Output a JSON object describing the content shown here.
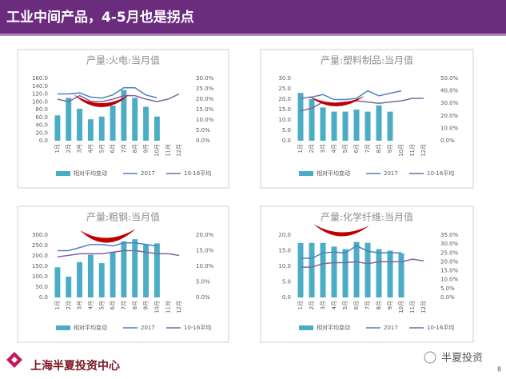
{
  "header": {
    "title": "工业中间产品，4-5月也是拐点"
  },
  "footer": {
    "org": "上海半夏投资中心",
    "watermark": "半夏投资",
    "page": 8
  },
  "chart_data": [
    {
      "type": "combo",
      "title": "产量:火电:当月值",
      "categories": [
        "1月",
        "2月",
        "3月",
        "4月",
        "5月",
        "6月",
        "7月",
        "8月",
        "9月",
        "10月",
        "11月",
        "12月"
      ],
      "series": [
        {
          "name": "相对平均变动",
          "type": "bar",
          "color": "#4bacc6",
          "values": [
            65,
            110,
            82,
            55,
            62,
            90,
            130,
            110,
            87,
            62,
            null,
            null
          ]
        },
        {
          "name": "2017",
          "type": "line",
          "axis": "y2",
          "color": "#4f81bd",
          "values": [
            22.5,
            22.5,
            23,
            21,
            20.5,
            22,
            25.5,
            25.5,
            22,
            20.6,
            null,
            null
          ]
        },
        {
          "name": "10-16平均",
          "type": "line",
          "axis": "y2",
          "color": "#8064a2",
          "values": [
            20,
            18.8,
            21.7,
            19,
            18.8,
            20,
            21.7,
            21.7,
            20,
            18.8,
            20,
            22.5
          ]
        }
      ],
      "ylim": [
        0,
        160
      ],
      "yticks": [
        {
          "value": 0,
          "label": "0.0"
        },
        {
          "value": 20,
          "label": "20.0"
        },
        {
          "value": 40,
          "label": "40.0"
        },
        {
          "value": 60,
          "label": "60.0"
        },
        {
          "value": 80,
          "label": "80.0"
        },
        {
          "value": 100,
          "label": "100.0"
        },
        {
          "value": 120,
          "label": "120.0"
        },
        {
          "value": 140,
          "label": "140.0"
        },
        {
          "value": 160,
          "label": "160.0"
        }
      ],
      "y2lim": [
        0,
        30
      ],
      "y2ticks": [
        {
          "value": 0,
          "label": "0.0%"
        },
        {
          "value": 5,
          "label": "5.0%"
        },
        {
          "value": 10,
          "label": "10.0%"
        },
        {
          "value": 15,
          "label": "15.0%"
        },
        {
          "value": 20,
          "label": "20.0%"
        },
        {
          "value": 25,
          "label": "25.0%"
        },
        {
          "value": 30,
          "label": "30.0%"
        }
      ]
    },
    {
      "type": "combo",
      "title": "产量:塑料制品:当月值",
      "categories": [
        "1月",
        "2月",
        "3月",
        "4月",
        "5月",
        "6月",
        "7月",
        "8月",
        "9月",
        "10月",
        "11月",
        "12月"
      ],
      "series": [
        {
          "name": "相对平均变动",
          "type": "bar",
          "color": "#4bacc6",
          "values": [
            23,
            20,
            16,
            14,
            14,
            15,
            14,
            17,
            14,
            null,
            null,
            null
          ]
        },
        {
          "name": "2017",
          "type": "line",
          "axis": "y2",
          "color": "#4f81bd",
          "values": [
            34,
            35,
            37,
            33,
            33,
            34,
            40,
            36,
            38,
            40,
            null,
            null
          ]
        },
        {
          "name": "10-16平均",
          "type": "line",
          "axis": "y2",
          "color": "#8064a2",
          "values": [
            24,
            26,
            31,
            30,
            31,
            32,
            31,
            30,
            31,
            32,
            34,
            34
          ]
        }
      ],
      "ylim": [
        0,
        30
      ],
      "yticks": [
        {
          "value": 0,
          "label": "0.0"
        },
        {
          "value": 5,
          "label": "5.0"
        },
        {
          "value": 10,
          "label": "10.0"
        },
        {
          "value": 15,
          "label": "15.0"
        },
        {
          "value": 20,
          "label": "20.0"
        },
        {
          "value": 25,
          "label": "25.0"
        },
        {
          "value": 30,
          "label": "30.0"
        }
      ],
      "y2lim": [
        0,
        50
      ],
      "y2ticks": [
        {
          "value": 0,
          "label": "0.0%"
        },
        {
          "value": 10,
          "label": "10.0%"
        },
        {
          "value": 20,
          "label": "20.0%"
        },
        {
          "value": 30,
          "label": "30.0%"
        },
        {
          "value": 40,
          "label": "40.0%"
        },
        {
          "value": 50,
          "label": "50.0%"
        }
      ]
    },
    {
      "type": "combo",
      "title": "产量:粗钢:当月值",
      "categories": [
        "1月",
        "2月",
        "3月",
        "4月",
        "5月",
        "6月",
        "7月",
        "8月",
        "9月",
        "10月",
        "11月",
        "12月"
      ],
      "series": [
        {
          "name": "相对平均变动",
          "type": "bar",
          "color": "#4bacc6",
          "values": [
            145,
            100,
            170,
            205,
            165,
            220,
            270,
            280,
            255,
            260,
            null,
            null
          ]
        },
        {
          "name": "2017",
          "type": "line",
          "axis": "y2",
          "color": "#4f81bd",
          "values": [
            15,
            15,
            16,
            17,
            17,
            16.5,
            17.5,
            17.5,
            17,
            16.5,
            null,
            null
          ]
        },
        {
          "name": "10-16平均",
          "type": "line",
          "axis": "y2",
          "color": "#8064a2",
          "values": [
            13,
            13.5,
            14,
            14,
            14,
            14.5,
            15,
            15,
            14.5,
            14,
            14,
            13.5
          ]
        }
      ],
      "ylim": [
        0,
        300
      ],
      "yticks": [
        {
          "value": 0,
          "label": "0.0"
        },
        {
          "value": 50,
          "label": "50.0"
        },
        {
          "value": 100,
          "label": "100.0"
        },
        {
          "value": 150,
          "label": "150.0"
        },
        {
          "value": 200,
          "label": "200.0"
        },
        {
          "value": 250,
          "label": "250.0"
        },
        {
          "value": 300,
          "label": "300.0"
        }
      ],
      "y2lim": [
        0,
        20
      ],
      "y2ticks": [
        {
          "value": 0,
          "label": "0.0%"
        },
        {
          "value": 5,
          "label": "5.0%"
        },
        {
          "value": 10,
          "label": "10.0%"
        },
        {
          "value": 15,
          "label": "15.0%"
        },
        {
          "value": 20,
          "label": "20.0%"
        }
      ]
    },
    {
      "type": "combo",
      "title": "产量:化学纤维:当月值",
      "categories": [
        "1月",
        "2月",
        "3月",
        "4月",
        "5月",
        "6月",
        "7月",
        "8月",
        "9月",
        "10月",
        "11月",
        "12月"
      ],
      "series": [
        {
          "name": "相对平均变动",
          "type": "bar",
          "color": "#4bacc6",
          "values": [
            17.5,
            17.5,
            17.5,
            16.3,
            15.5,
            17.8,
            17.5,
            15.5,
            15,
            14.2,
            null,
            null
          ]
        },
        {
          "name": "2017",
          "type": "line",
          "axis": "y2",
          "color": "#4f81bd",
          "values": [
            22,
            22,
            25,
            25.5,
            25,
            29,
            26,
            25,
            25,
            25,
            null,
            null
          ]
        },
        {
          "name": "10-16平均",
          "type": "line",
          "axis": "y2",
          "color": "#8064a2",
          "values": [
            17,
            17,
            19,
            19.5,
            19.5,
            20,
            19,
            20,
            20,
            20,
            21.5,
            20.5
          ]
        }
      ],
      "ylim": [
        0,
        20
      ],
      "yticks": [
        {
          "value": 0,
          "label": "0.0"
        },
        {
          "value": 5,
          "label": "5.0"
        },
        {
          "value": 10,
          "label": "10.0"
        },
        {
          "value": 15,
          "label": "15.0"
        },
        {
          "value": 20,
          "label": "20.0"
        }
      ],
      "y2lim": [
        0,
        35
      ],
      "y2ticks": [
        {
          "value": 0,
          "label": "0.0%"
        },
        {
          "value": 5,
          "label": "5.0%"
        },
        {
          "value": 10,
          "label": "10.0%"
        },
        {
          "value": 15,
          "label": "15.0%"
        },
        {
          "value": 20,
          "label": "20.0%"
        },
        {
          "value": 25,
          "label": "25.0%"
        },
        {
          "value": 30,
          "label": "30.0%"
        },
        {
          "value": 35,
          "label": "35.0%"
        }
      ]
    }
  ]
}
